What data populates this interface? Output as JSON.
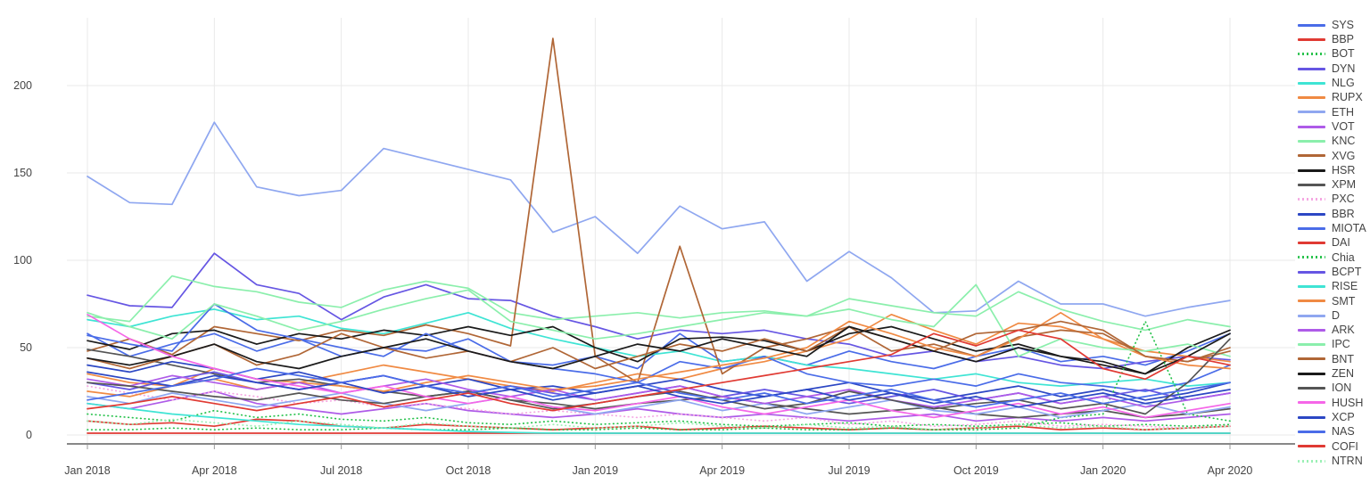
{
  "chart": {
    "kind": "multi-series line chart",
    "legend_note": "crypto ticker series, right-side legend, last entry clipped"
  },
  "chart_data": {
    "type": "line",
    "title": "",
    "xlabel": "",
    "ylabel": "",
    "grid": true,
    "legend_position": "right",
    "ylim": [
      0,
      235
    ],
    "yticks": [
      0,
      50,
      100,
      150,
      200
    ],
    "xticks": [
      "Jan 2018",
      "Apr 2018",
      "Jul 2018",
      "Oct 2018",
      "Jan 2019",
      "Apr 2019",
      "Jul 2019",
      "Oct 2019",
      "Jan 2020",
      "Apr 2020"
    ],
    "x": [
      "Jan 2018",
      "Feb 2018",
      "Mar 2018",
      "Apr 2018",
      "May 2018",
      "Jun 2018",
      "Jul 2018",
      "Aug 2018",
      "Sep 2018",
      "Oct 2018",
      "Nov 2018",
      "Dec 2018",
      "Jan 2019",
      "Feb 2019",
      "Mar 2019",
      "Apr 2019",
      "May 2019",
      "Jun 2019",
      "Jul 2019",
      "Aug 2019",
      "Sep 2019",
      "Oct 2019",
      "Nov 2019",
      "Dec 2019",
      "Jan 2020",
      "Feb 2020",
      "Mar 2020",
      "Apr 2020"
    ],
    "colors": {
      "grid": "#e9e9e9",
      "axis_line": "#888888",
      "tick_mark": "#999999",
      "tick_text": "#444444",
      "legend_text": "#444444"
    },
    "series": [
      {
        "name": "SYS",
        "color": "#4a6ce8",
        "dash": "solid",
        "values": [
          58,
          45,
          52,
          58,
          48,
          55,
          45,
          50,
          48,
          55,
          42,
          40,
          45,
          38,
          58,
          42,
          45,
          40,
          48,
          42,
          38,
          45,
          50,
          42,
          45,
          40,
          48,
          58
        ]
      },
      {
        "name": "BBP",
        "color": "#e03a33",
        "dash": "solid",
        "values": [
          8,
          6,
          7,
          5,
          9,
          8,
          5,
          4,
          6,
          5,
          4,
          3,
          4,
          5,
          3,
          4,
          5,
          4,
          3,
          4,
          3,
          4,
          5,
          3,
          4,
          3,
          4,
          5
        ]
      },
      {
        "name": "BOT",
        "color": "#27c24c",
        "dash": "dot",
        "values": [
          12,
          10,
          8,
          14,
          10,
          12,
          9,
          8,
          10,
          7,
          6,
          8,
          6,
          7,
          8,
          6,
          5,
          6,
          7,
          5,
          6,
          5,
          6,
          7,
          5,
          6,
          5,
          6
        ]
      },
      {
        "name": "DYN",
        "color": "#6656e3",
        "dash": "solid",
        "values": [
          80,
          74,
          73,
          104,
          86,
          81,
          66,
          79,
          86,
          78,
          77,
          68,
          62,
          55,
          60,
          58,
          60,
          55,
          52,
          45,
          48,
          42,
          45,
          40,
          38,
          42,
          45,
          43
        ]
      },
      {
        "name": "NLG",
        "color": "#3fe4d4",
        "dash": "solid",
        "values": [
          66,
          62,
          68,
          72,
          66,
          68,
          61,
          58,
          64,
          70,
          61,
          55,
          50,
          45,
          48,
          42,
          45,
          40,
          38,
          35,
          32,
          35,
          30,
          28,
          30,
          32,
          28,
          30
        ]
      },
      {
        "name": "RUPX",
        "color": "#f08a43",
        "dash": "solid",
        "values": [
          35,
          30,
          28,
          38,
          32,
          30,
          35,
          40,
          36,
          32,
          28,
          25,
          30,
          35,
          32,
          38,
          42,
          48,
          55,
          69,
          60,
          52,
          64,
          62,
          55,
          48,
          45,
          42
        ]
      },
      {
        "name": "ETH",
        "color": "#8fa7f0",
        "dash": "solid",
        "values": [
          148,
          133,
          132,
          179,
          142,
          137,
          140,
          164,
          158,
          152,
          146,
          116,
          125,
          104,
          131,
          118,
          122,
          88,
          105,
          90,
          70,
          71,
          88,
          75,
          75,
          68,
          73,
          77
        ]
      },
      {
        "name": "VOT",
        "color": "#ae5be8",
        "dash": "solid",
        "values": [
          18,
          15,
          20,
          25,
          18,
          15,
          12,
          15,
          18,
          14,
          12,
          10,
          12,
          15,
          12,
          10,
          12,
          10,
          8,
          10,
          12,
          8,
          10,
          8,
          10,
          8,
          10,
          12
        ]
      },
      {
        "name": "KNC",
        "color": "#8befac",
        "dash": "solid",
        "values": [
          68,
          65,
          91,
          85,
          82,
          76,
          73,
          83,
          88,
          84,
          70,
          66,
          68,
          70,
          67,
          70,
          71,
          68,
          78,
          74,
          70,
          68,
          82,
          72,
          65,
          60,
          66,
          62
        ]
      },
      {
        "name": "XVG",
        "color": "#b06636",
        "dash": "solid",
        "values": [
          48,
          55,
          46,
          62,
          58,
          54,
          60,
          57,
          63,
          58,
          51,
          227,
          45,
          30,
          108,
          35,
          50,
          55,
          62,
          48,
          52,
          45,
          56,
          60,
          58,
          45,
          42,
          50
        ]
      },
      {
        "name": "HSR",
        "color": "#1a1a1a",
        "dash": "solid",
        "values": [
          54,
          49,
          58,
          60,
          52,
          58,
          55,
          60,
          57,
          62,
          57,
          62,
          50,
          42,
          55,
          56,
          54,
          48,
          58,
          62,
          55,
          48,
          52,
          45,
          40,
          35,
          50,
          60
        ]
      },
      {
        "name": "XPM",
        "color": "#555555",
        "dash": "solid",
        "values": [
          49,
          45,
          40,
          35,
          30,
          32,
          28,
          25,
          22,
          25,
          20,
          18,
          15,
          18,
          20,
          22,
          18,
          15,
          12,
          14,
          16,
          12,
          10,
          12,
          14,
          10,
          12,
          15
        ]
      },
      {
        "name": "PXC",
        "color": "#f5a6e2",
        "dash": "dot",
        "values": [
          28,
          24,
          20,
          25,
          22,
          18,
          20,
          16,
          18,
          15,
          12,
          14,
          12,
          10,
          12,
          10,
          8,
          10,
          6,
          8,
          5,
          6,
          8,
          5,
          6,
          5,
          4,
          5
        ]
      },
      {
        "name": "BBR",
        "color": "#2c47c4",
        "dash": "solid",
        "values": [
          40,
          36,
          42,
          38,
          32,
          36,
          30,
          34,
          28,
          32,
          26,
          28,
          24,
          28,
          32,
          26,
          22,
          26,
          30,
          24,
          20,
          24,
          28,
          22,
          26,
          20,
          24,
          30
        ]
      },
      {
        "name": "MIOTA",
        "color": "#4a6ce8",
        "dash": "solid",
        "values": [
          57,
          52,
          48,
          75,
          60,
          55,
          50,
          45,
          58,
          48,
          42,
          38,
          35,
          30,
          42,
          38,
          45,
          35,
          30,
          28,
          32,
          28,
          35,
          30,
          28,
          25,
          30,
          40
        ]
      },
      {
        "name": "DAI",
        "color": "#e03a33",
        "dash": "solid",
        "values": [
          1,
          1,
          1,
          1,
          1,
          1,
          1,
          1,
          1,
          1,
          1,
          1,
          1,
          1,
          1,
          1,
          1,
          1,
          1,
          1,
          1,
          1,
          1,
          1,
          1,
          1,
          1,
          1
        ]
      },
      {
        "name": "Chia",
        "color": "#27c24c",
        "dash": "dot",
        "values": [
          3,
          3,
          4,
          3,
          4,
          3,
          3,
          4,
          3,
          3,
          4,
          3,
          3,
          4,
          3,
          3,
          4,
          3,
          3,
          4,
          3,
          3,
          4,
          10,
          12,
          65,
          12,
          8
        ]
      },
      {
        "name": "BCPT",
        "color": "#6656e3",
        "dash": "solid",
        "values": [
          30,
          26,
          32,
          36,
          30,
          26,
          30,
          34,
          28,
          24,
          28,
          24,
          20,
          24,
          28,
          22,
          26,
          22,
          18,
          22,
          26,
          20,
          24,
          18,
          22,
          26,
          20,
          24
        ]
      },
      {
        "name": "RISE",
        "color": "#3fe4d4",
        "dash": "solid",
        "values": [
          18,
          15,
          12,
          10,
          8,
          6,
          5,
          4,
          3,
          2,
          1.5,
          1,
          1,
          1,
          1,
          1,
          1,
          1,
          1,
          1,
          1,
          1,
          1,
          1,
          1,
          1,
          1,
          1
        ]
      },
      {
        "name": "SMT",
        "color": "#f08a43",
        "dash": "solid",
        "values": [
          25,
          22,
          28,
          32,
          26,
          30,
          28,
          25,
          30,
          34,
          30,
          26,
          28,
          32,
          36,
          40,
          44,
          50,
          65,
          58,
          50,
          45,
          55,
          70,
          55,
          45,
          40,
          38
        ]
      },
      {
        "name": "D",
        "color": "#8fa7f0",
        "dash": "solid",
        "values": [
          22,
          18,
          24,
          20,
          16,
          20,
          24,
          18,
          14,
          18,
          22,
          16,
          12,
          16,
          20,
          14,
          18,
          12,
          16,
          20,
          14,
          12,
          16,
          10,
          14,
          18,
          12,
          16
        ]
      },
      {
        "name": "ARK",
        "color": "#ae5be8",
        "dash": "solid",
        "values": [
          32,
          28,
          34,
          30,
          26,
          30,
          24,
          28,
          32,
          26,
          22,
          26,
          20,
          24,
          28,
          22,
          18,
          22,
          26,
          20,
          16,
          20,
          24,
          18,
          22,
          16,
          20,
          24
        ]
      },
      {
        "name": "IPC",
        "color": "#8befac",
        "dash": "solid",
        "values": [
          70,
          62,
          55,
          75,
          68,
          60,
          65,
          72,
          78,
          83,
          65,
          60,
          55,
          58,
          62,
          66,
          70,
          68,
          72,
          66,
          62,
          86,
          45,
          55,
          50,
          48,
          52,
          45
        ]
      },
      {
        "name": "BNT",
        "color": "#b06636",
        "dash": "solid",
        "values": [
          44,
          38,
          45,
          52,
          40,
          46,
          58,
          50,
          44,
          48,
          42,
          50,
          38,
          45,
          52,
          48,
          55,
          48,
          62,
          55,
          48,
          58,
          60,
          65,
          60,
          45,
          42,
          48
        ]
      },
      {
        "name": "ZEN",
        "color": "#1a1a1a",
        "dash": "solid",
        "values": [
          44,
          40,
          45,
          52,
          42,
          38,
          45,
          50,
          55,
          48,
          42,
          38,
          45,
          52,
          48,
          55,
          50,
          45,
          62,
          55,
          48,
          42,
          50,
          45,
          42,
          35,
          45,
          58
        ]
      },
      {
        "name": "ION",
        "color": "#555555",
        "dash": "solid",
        "values": [
          30,
          28,
          25,
          22,
          20,
          24,
          20,
          18,
          22,
          25,
          20,
          15,
          18,
          22,
          25,
          20,
          15,
          18,
          25,
          20,
          15,
          18,
          20,
          15,
          18,
          12,
          30,
          55
        ]
      },
      {
        "name": "HUSH",
        "color": "#f566e8",
        "dash": "solid",
        "values": [
          69,
          55,
          45,
          38,
          32,
          28,
          24,
          28,
          22,
          18,
          22,
          16,
          14,
          18,
          22,
          16,
          12,
          16,
          20,
          14,
          10,
          14,
          18,
          12,
          16,
          10,
          14,
          18
        ]
      },
      {
        "name": "XCP",
        "color": "#2c47c4",
        "dash": "solid",
        "values": [
          36,
          32,
          28,
          34,
          30,
          26,
          30,
          24,
          28,
          22,
          26,
          20,
          24,
          28,
          22,
          18,
          22,
          26,
          20,
          24,
          18,
          22,
          16,
          20,
          24,
          18,
          22,
          26
        ]
      },
      {
        "name": "NAS",
        "color": "#4a6ce8",
        "dash": "solid",
        "values": [
          20,
          24,
          28,
          32,
          38,
          34,
          30,
          34,
          28,
          24,
          28,
          22,
          26,
          30,
          24,
          20,
          24,
          18,
          22,
          26,
          20,
          16,
          20,
          24,
          18,
          22,
          26,
          30
        ]
      },
      {
        "name": "COFI",
        "color": "#e03a33",
        "dash": "solid",
        "values": [
          15,
          18,
          22,
          18,
          14,
          18,
          22,
          16,
          20,
          24,
          18,
          14,
          18,
          22,
          26,
          30,
          34,
          38,
          42,
          46,
          58,
          51,
          60,
          55,
          38,
          32,
          45,
          40
        ]
      },
      {
        "name": "NTRN",
        "color": "#9bf0b5",
        "dash": "dot",
        "values": [
          8,
          6,
          9,
          7,
          5,
          8,
          6,
          4,
          7,
          5,
          4,
          6,
          4,
          5,
          7,
          5,
          4,
          6,
          4,
          5,
          3,
          4,
          6,
          4,
          5,
          3,
          4,
          5
        ]
      }
    ]
  }
}
